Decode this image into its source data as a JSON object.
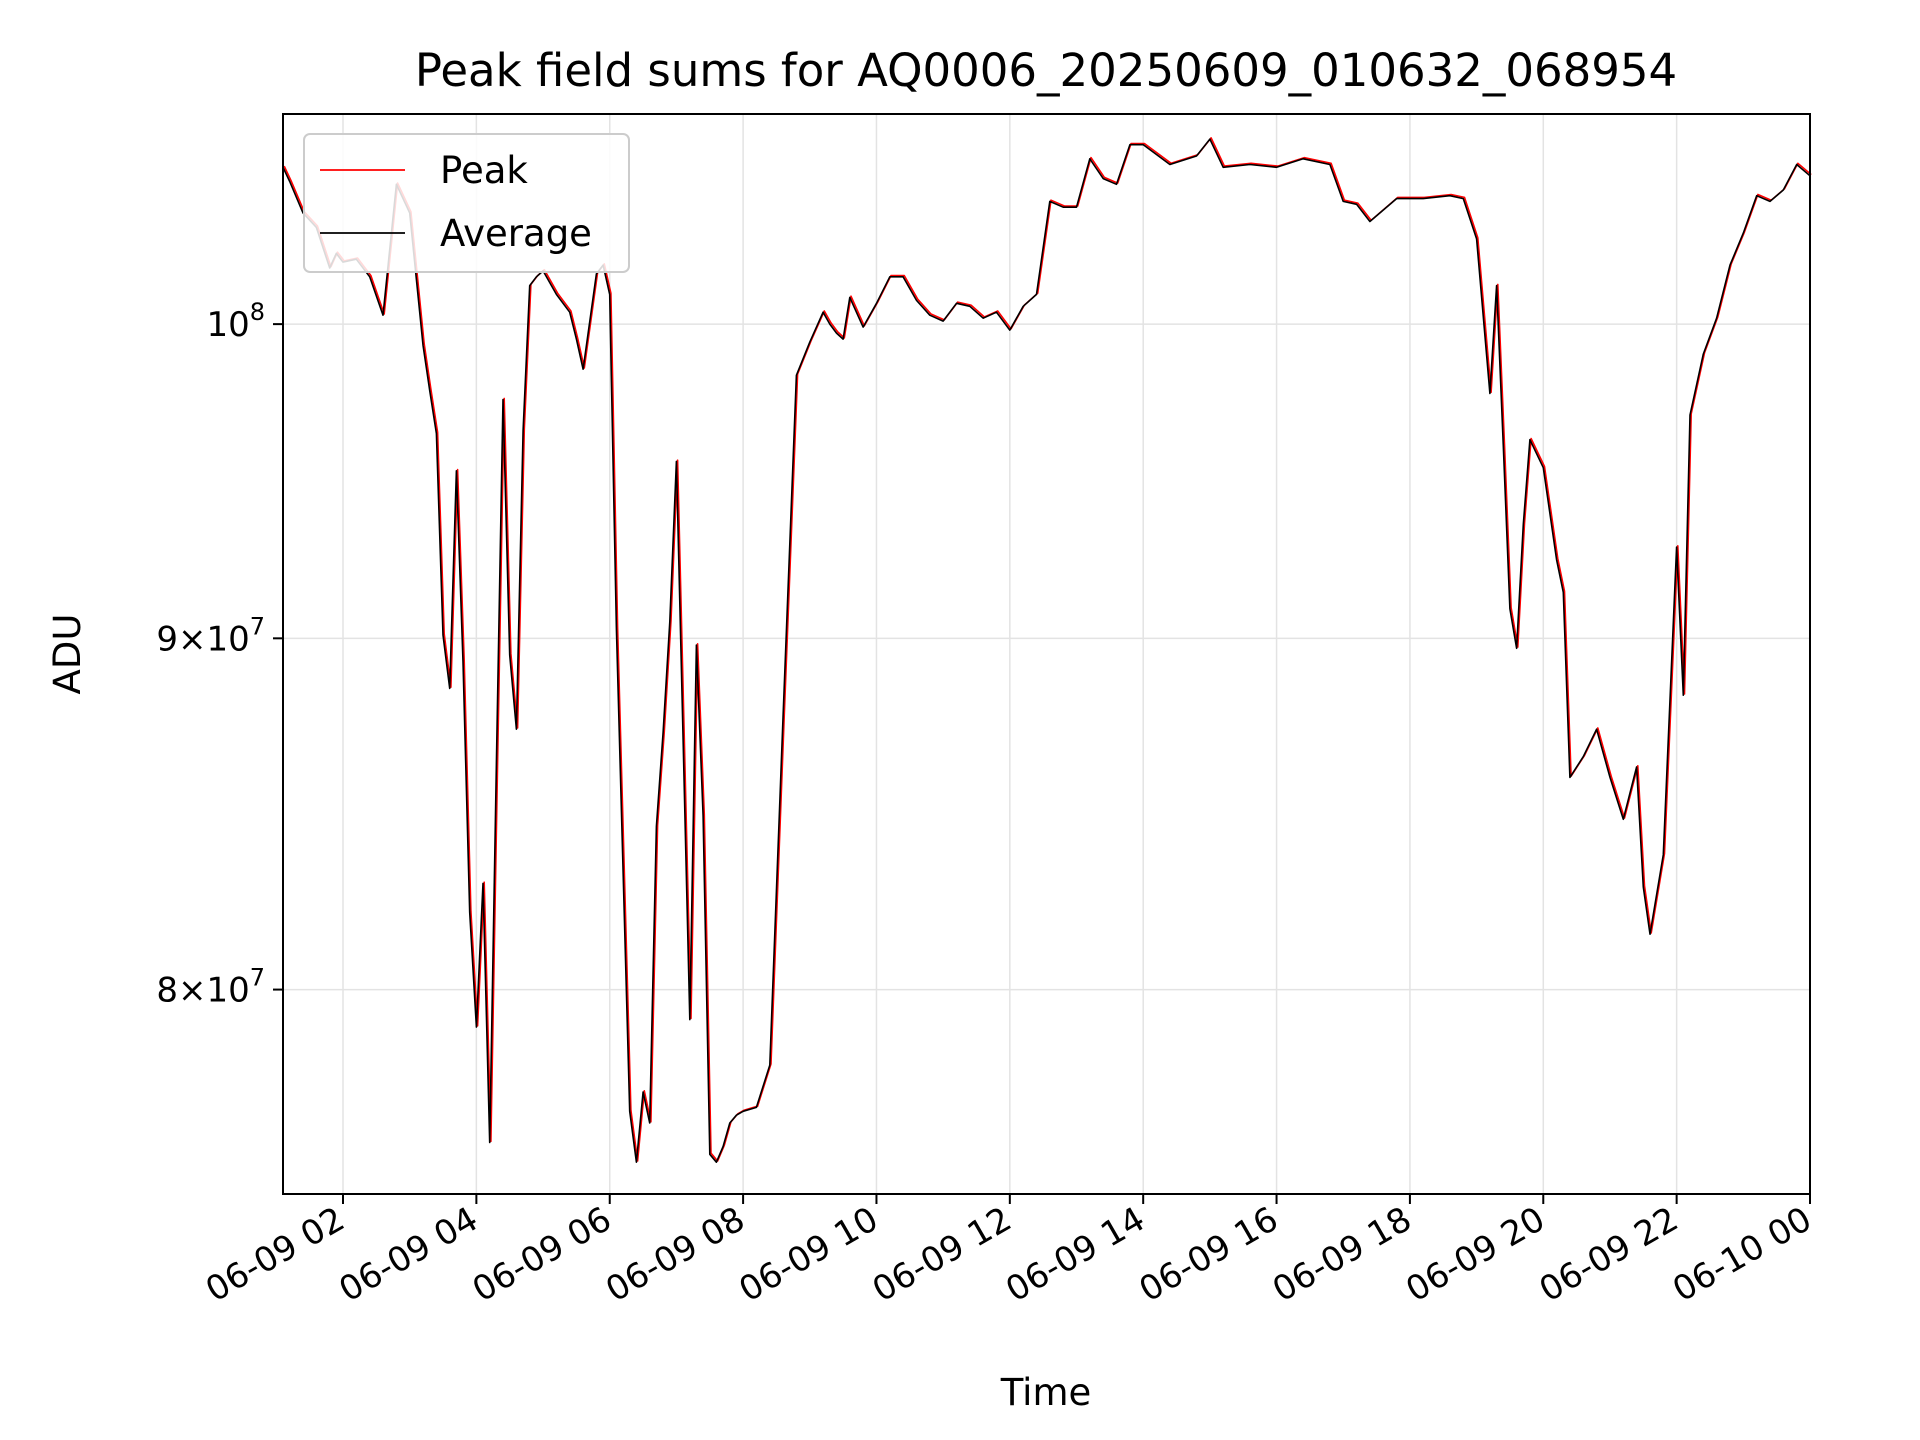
{
  "chart_data": {
    "type": "line",
    "title": "Peak field sums for AQ0006_20250609_010632_068954",
    "xlabel": "Time",
    "ylabel": "ADU",
    "y_scale": "log",
    "grid": true,
    "legend_placement": "top-left",
    "x_range": [
      "06-09 01:06",
      "06-10 00:00"
    ],
    "ylim": [
      74700000,
      107300000
    ],
    "x_ticks": [
      "06-09 02",
      "06-09 04",
      "06-09 06",
      "06-09 08",
      "06-09 10",
      "06-09 12",
      "06-09 14",
      "06-09 16",
      "06-09 18",
      "06-09 20",
      "06-09 22",
      "06-10 00"
    ],
    "y_ticks": [
      {
        "value": 80000000,
        "mantissa": "8",
        "base": "10",
        "exp": "7"
      },
      {
        "value": 90000000,
        "mantissa": "9",
        "base": "10",
        "exp": "7"
      },
      {
        "value": 100000000,
        "mantissa": "",
        "base": "10",
        "exp": "8"
      }
    ],
    "x": [
      "06-09 01:06",
      "06-09 01:12",
      "06-09 01:24",
      "06-09 01:36",
      "06-09 01:48",
      "06-09 01:54",
      "06-09 02:00",
      "06-09 02:12",
      "06-09 02:24",
      "06-09 02:36",
      "06-09 02:48",
      "06-09 03:00",
      "06-09 03:12",
      "06-09 03:18",
      "06-09 03:24",
      "06-09 03:30",
      "06-09 03:36",
      "06-09 03:42",
      "06-09 03:48",
      "06-09 03:54",
      "06-09 04:00",
      "06-09 04:06",
      "06-09 04:12",
      "06-09 04:18",
      "06-09 04:24",
      "06-09 04:30",
      "06-09 04:36",
      "06-09 04:42",
      "06-09 04:48",
      "06-09 04:54",
      "06-09 05:00",
      "06-09 05:12",
      "06-09 05:24",
      "06-09 05:30",
      "06-09 05:36",
      "06-09 05:48",
      "06-09 05:54",
      "06-09 06:00",
      "06-09 06:06",
      "06-09 06:18",
      "06-09 06:24",
      "06-09 06:30",
      "06-09 06:36",
      "06-09 06:42",
      "06-09 06:48",
      "06-09 06:54",
      "06-09 07:00",
      "06-09 07:06",
      "06-09 07:12",
      "06-09 07:18",
      "06-09 07:24",
      "06-09 07:30",
      "06-09 07:36",
      "06-09 07:42",
      "06-09 07:48",
      "06-09 07:54",
      "06-09 08:00",
      "06-09 08:12",
      "06-09 08:24",
      "06-09 08:36",
      "06-09 08:48",
      "06-09 09:00",
      "06-09 09:12",
      "06-09 09:18",
      "06-09 09:24",
      "06-09 09:30",
      "06-09 09:36",
      "06-09 09:48",
      "06-09 10:00",
      "06-09 10:12",
      "06-09 10:24",
      "06-09 10:36",
      "06-09 10:48",
      "06-09 11:00",
      "06-09 11:12",
      "06-09 11:24",
      "06-09 11:36",
      "06-09 11:48",
      "06-09 12:00",
      "06-09 12:12",
      "06-09 12:24",
      "06-09 12:36",
      "06-09 12:48",
      "06-09 13:00",
      "06-09 13:12",
      "06-09 13:24",
      "06-09 13:36",
      "06-09 13:48",
      "06-09 14:00",
      "06-09 14:24",
      "06-09 14:48",
      "06-09 15:00",
      "06-09 15:12",
      "06-09 15:36",
      "06-09 16:00",
      "06-09 16:24",
      "06-09 16:48",
      "06-09 17:00",
      "06-09 17:12",
      "06-09 17:24",
      "06-09 17:48",
      "06-09 18:12",
      "06-09 18:36",
      "06-09 18:48",
      "06-09 19:00",
      "06-09 19:12",
      "06-09 19:18",
      "06-09 19:24",
      "06-09 19:30",
      "06-09 19:36",
      "06-09 19:42",
      "06-09 19:48",
      "06-09 20:00",
      "06-09 20:12",
      "06-09 20:18",
      "06-09 20:24",
      "06-09 20:36",
      "06-09 20:48",
      "06-09 21:00",
      "06-09 21:12",
      "06-09 21:24",
      "06-09 21:30",
      "06-09 21:36",
      "06-09 21:48",
      "06-09 22:00",
      "06-09 22:06",
      "06-09 22:12",
      "06-09 22:24",
      "06-09 22:36",
      "06-09 22:48",
      "06-09 23:00",
      "06-09 23:12",
      "06-09 23:24",
      "06-09 23:36",
      "06-09 23:48",
      "06-10 00:00"
    ],
    "series": [
      {
        "name": "Peak",
        "color": "#ff0000",
        "values": [
          105400000,
          104900000,
          103800000,
          103300000,
          101900000,
          102400000,
          102100000,
          102200000,
          101600000,
          100300000,
          104800000,
          103800000,
          99300000,
          97800000,
          96400000,
          90100000,
          88500000,
          95200000,
          89300000,
          82100000,
          79000000,
          82900000,
          76000000,
          86300000,
          97500000,
          89500000,
          87300000,
          96500000,
          101300000,
          101600000,
          101800000,
          101000000,
          100400000,
          99500000,
          98500000,
          101700000,
          102000000,
          101000000,
          90300000,
          76800000,
          75500000,
          77300000,
          76500000,
          84500000,
          87200000,
          90500000,
          95500000,
          87000000,
          79200000,
          89800000,
          84800000,
          75700000,
          75500000,
          75900000,
          76500000,
          76700000,
          76800000,
          76900000,
          78000000,
          87700000,
          98300000,
          99400000,
          100400000,
          100000000,
          99700000,
          99500000,
          100900000,
          99900000,
          100700000,
          101600000,
          101600000,
          100800000,
          100300000,
          100100000,
          100700000,
          100600000,
          100200000,
          100400000,
          99800000,
          100600000,
          101000000,
          104200000,
          104000000,
          104000000,
          105700000,
          105000000,
          104800000,
          106200000,
          106200000,
          105500000,
          105800000,
          106400000,
          105400000,
          105500000,
          105400000,
          105700000,
          105500000,
          104200000,
          104100000,
          103500000,
          104300000,
          104300000,
          104400000,
          104300000,
          102900000,
          97700000,
          101300000,
          96000000,
          90900000,
          89700000,
          93500000,
          96200000,
          95300000,
          92400000,
          91400000,
          85900000,
          86500000,
          87300000,
          85900000,
          84700000,
          86200000,
          82800000,
          81500000,
          83700000,
          92800000,
          88300000,
          97000000,
          99000000,
          100200000,
          102000000,
          103100000,
          104400000,
          104200000,
          104600000,
          105500000,
          105100000
        ]
      },
      {
        "name": "Average",
        "color": "#000000",
        "values": [
          105400000,
          104900000,
          103800000,
          103300000,
          101900000,
          102400000,
          102100000,
          102200000,
          101600000,
          100300000,
          104800000,
          103800000,
          99300000,
          97800000,
          96400000,
          90100000,
          88500000,
          95200000,
          89300000,
          82100000,
          79000000,
          82900000,
          76000000,
          86300000,
          97500000,
          89500000,
          87300000,
          96500000,
          101300000,
          101600000,
          101800000,
          101000000,
          100400000,
          99500000,
          98500000,
          101700000,
          102000000,
          101000000,
          90300000,
          76800000,
          75500000,
          77300000,
          76500000,
          84500000,
          87200000,
          90500000,
          95500000,
          87000000,
          79200000,
          89800000,
          84800000,
          75700000,
          75500000,
          75900000,
          76500000,
          76700000,
          76800000,
          76900000,
          78000000,
          87700000,
          98300000,
          99400000,
          100400000,
          100000000,
          99700000,
          99500000,
          100900000,
          99900000,
          100700000,
          101600000,
          101600000,
          100800000,
          100300000,
          100100000,
          100700000,
          100600000,
          100200000,
          100400000,
          99800000,
          100600000,
          101000000,
          104200000,
          104000000,
          104000000,
          105700000,
          105000000,
          104800000,
          106200000,
          106200000,
          105500000,
          105800000,
          106400000,
          105400000,
          105500000,
          105400000,
          105700000,
          105500000,
          104200000,
          104100000,
          103500000,
          104300000,
          104300000,
          104400000,
          104300000,
          102900000,
          97700000,
          101300000,
          96000000,
          90900000,
          89700000,
          93500000,
          96200000,
          95300000,
          92400000,
          91400000,
          85900000,
          86500000,
          87300000,
          85900000,
          84700000,
          86200000,
          82800000,
          81500000,
          83700000,
          92800000,
          88300000,
          97000000,
          99000000,
          100200000,
          102000000,
          103100000,
          104400000,
          104200000,
          104600000,
          105500000,
          105100000
        ]
      }
    ]
  }
}
